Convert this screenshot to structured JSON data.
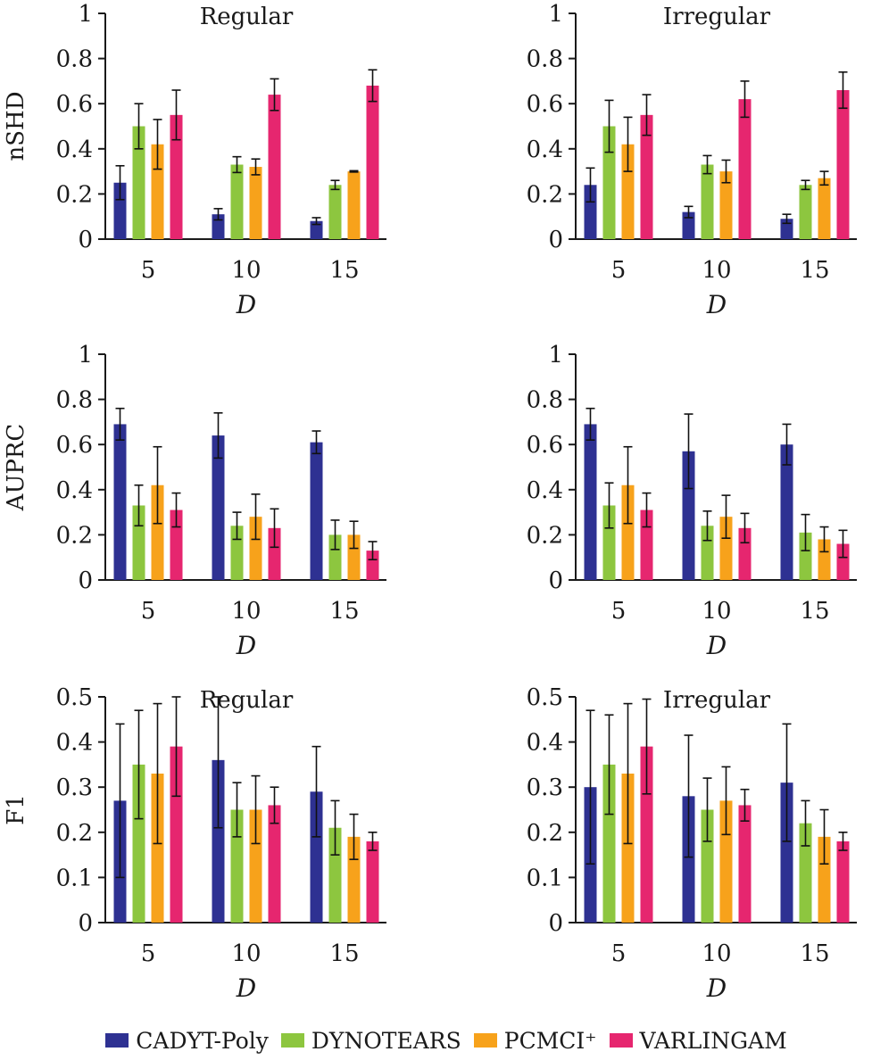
{
  "legend": {
    "items": [
      {
        "label": "CADYT-Poly",
        "color": "#2e3192"
      },
      {
        "label": "DYNOTEARS",
        "color": "#8dc63f"
      },
      {
        "label": "PCMCI⁺",
        "color": "#f7a21b"
      },
      {
        "label": "VARLINGAM",
        "color": "#e6266f"
      }
    ]
  },
  "chart_data": [
    {
      "type": "bar",
      "title": "Regular",
      "xlabel": "D",
      "ylabel": "nSHD",
      "categories": [
        "5",
        "10",
        "15"
      ],
      "ylim": [
        0,
        1
      ],
      "yticks": [
        "0",
        "0.2",
        "0.4",
        "0.6",
        "0.8",
        "1"
      ],
      "series": [
        {
          "name": "CADYT-Poly",
          "values": [
            0.25,
            0.11,
            0.08
          ],
          "errors": [
            0.075,
            0.025,
            0.015
          ]
        },
        {
          "name": "DYNOTEARS",
          "values": [
            0.5,
            0.33,
            0.24
          ],
          "errors": [
            0.1,
            0.035,
            0.02
          ]
        },
        {
          "name": "PCMCI⁺",
          "values": [
            0.42,
            0.32,
            0.3
          ],
          "errors": [
            0.11,
            0.035,
            0.003
          ]
        },
        {
          "name": "VARLINGAM",
          "values": [
            0.55,
            0.64,
            0.68
          ],
          "errors": [
            0.11,
            0.07,
            0.07
          ]
        }
      ]
    },
    {
      "type": "bar",
      "title": "Irregular",
      "xlabel": "D",
      "ylabel": "",
      "categories": [
        "5",
        "10",
        "15"
      ],
      "ylim": [
        0,
        1
      ],
      "yticks": [
        "0",
        "0.2",
        "0.4",
        "0.6",
        "0.8",
        "1"
      ],
      "series": [
        {
          "name": "CADYT-Poly",
          "values": [
            0.24,
            0.12,
            0.09
          ],
          "errors": [
            0.075,
            0.025,
            0.02
          ]
        },
        {
          "name": "DYNOTEARS",
          "values": [
            0.5,
            0.33,
            0.24
          ],
          "errors": [
            0.115,
            0.04,
            0.02
          ]
        },
        {
          "name": "PCMCI⁺",
          "values": [
            0.42,
            0.3,
            0.27
          ],
          "errors": [
            0.12,
            0.05,
            0.03
          ]
        },
        {
          "name": "VARLINGAM",
          "values": [
            0.55,
            0.62,
            0.66
          ],
          "errors": [
            0.09,
            0.08,
            0.08
          ]
        }
      ]
    },
    {
      "type": "bar",
      "title": "",
      "xlabel": "D",
      "ylabel": "AUPRC",
      "categories": [
        "5",
        "10",
        "15"
      ],
      "ylim": [
        0,
        1
      ],
      "yticks": [
        "0",
        "0.2",
        "0.4",
        "0.6",
        "0.8",
        "1"
      ],
      "series": [
        {
          "name": "CADYT-Poly",
          "values": [
            0.69,
            0.64,
            0.61
          ],
          "errors": [
            0.07,
            0.1,
            0.05
          ]
        },
        {
          "name": "DYNOTEARS",
          "values": [
            0.33,
            0.24,
            0.2
          ],
          "errors": [
            0.09,
            0.06,
            0.065
          ]
        },
        {
          "name": "PCMCI⁺",
          "values": [
            0.42,
            0.28,
            0.2
          ],
          "errors": [
            0.17,
            0.1,
            0.06
          ]
        },
        {
          "name": "VARLINGAM",
          "values": [
            0.31,
            0.23,
            0.13
          ],
          "errors": [
            0.075,
            0.085,
            0.04
          ]
        }
      ]
    },
    {
      "type": "bar",
      "title": "",
      "xlabel": "D",
      "ylabel": "",
      "categories": [
        "5",
        "10",
        "15"
      ],
      "ylim": [
        0,
        1
      ],
      "yticks": [
        "0",
        "0.2",
        "0.4",
        "0.6",
        "0.8",
        "1"
      ],
      "series": [
        {
          "name": "CADYT-Poly",
          "values": [
            0.69,
            0.57,
            0.6
          ],
          "errors": [
            0.07,
            0.165,
            0.09
          ]
        },
        {
          "name": "DYNOTEARS",
          "values": [
            0.33,
            0.24,
            0.21
          ],
          "errors": [
            0.1,
            0.065,
            0.08
          ]
        },
        {
          "name": "PCMCI⁺",
          "values": [
            0.42,
            0.28,
            0.18
          ],
          "errors": [
            0.17,
            0.095,
            0.055
          ]
        },
        {
          "name": "VARLINGAM",
          "values": [
            0.31,
            0.23,
            0.16
          ],
          "errors": [
            0.075,
            0.065,
            0.06
          ]
        }
      ]
    },
    {
      "type": "bar",
      "title": "Regular",
      "xlabel": "D",
      "ylabel": "F1",
      "categories": [
        "5",
        "10",
        "15"
      ],
      "ylim": [
        0,
        0.5
      ],
      "yticks": [
        "0",
        "0.1",
        "0.2",
        "0.3",
        "0.4",
        "0.5"
      ],
      "series": [
        {
          "name": "CADYT-Poly",
          "values": [
            0.27,
            0.36,
            0.29
          ],
          "errors": [
            0.17,
            0.15,
            0.1
          ]
        },
        {
          "name": "DYNOTEARS",
          "values": [
            0.35,
            0.25,
            0.21
          ],
          "errors": [
            0.12,
            0.06,
            0.06
          ]
        },
        {
          "name": "PCMCI⁺",
          "values": [
            0.33,
            0.25,
            0.19
          ],
          "errors": [
            0.155,
            0.075,
            0.05
          ]
        },
        {
          "name": "VARLINGAM",
          "values": [
            0.39,
            0.26,
            0.18
          ],
          "errors": [
            0.11,
            0.04,
            0.02
          ]
        }
      ]
    },
    {
      "type": "bar",
      "title": "Irregular",
      "xlabel": "D",
      "ylabel": "",
      "categories": [
        "5",
        "10",
        "15"
      ],
      "ylim": [
        0,
        0.5
      ],
      "yticks": [
        "0",
        "0.1",
        "0.2",
        "0.3",
        "0.4",
        "0.5"
      ],
      "series": [
        {
          "name": "CADYT-Poly",
          "values": [
            0.3,
            0.28,
            0.31
          ],
          "errors": [
            0.17,
            0.135,
            0.13
          ]
        },
        {
          "name": "DYNOTEARS",
          "values": [
            0.35,
            0.25,
            0.22
          ],
          "errors": [
            0.11,
            0.07,
            0.05
          ]
        },
        {
          "name": "PCMCI⁺",
          "values": [
            0.33,
            0.27,
            0.19
          ],
          "errors": [
            0.155,
            0.075,
            0.06
          ]
        },
        {
          "name": "VARLINGAM",
          "values": [
            0.39,
            0.26,
            0.18
          ],
          "errors": [
            0.105,
            0.035,
            0.02
          ]
        }
      ]
    }
  ]
}
